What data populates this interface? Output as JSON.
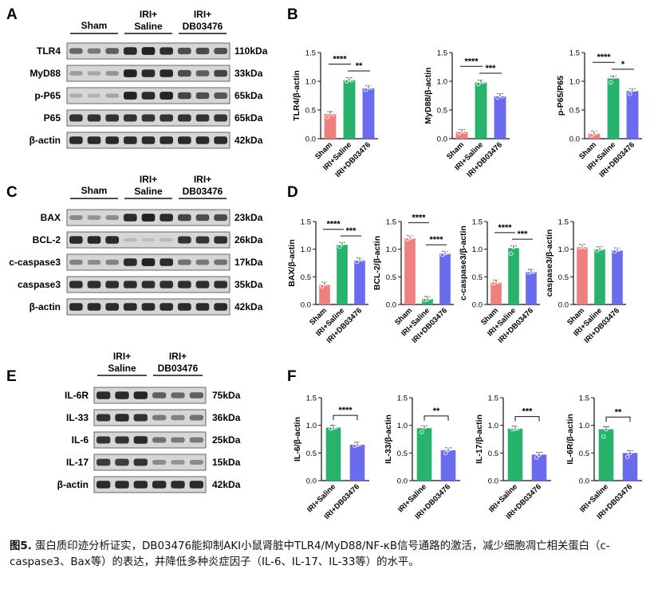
{
  "panels": {
    "A": {
      "letter": "A",
      "groups": [
        "Sham",
        "IRI+\nSaline",
        "IRI+\nDB03476"
      ],
      "rows": [
        {
          "protein": "TLR4",
          "kda": "110kDa",
          "lanes": [
            0.55,
            0.45,
            0.6,
            0.9,
            0.95,
            0.88,
            0.7,
            0.72,
            0.68
          ]
        },
        {
          "protein": "MyD88",
          "kda": "33kDa",
          "lanes": [
            0.25,
            0.2,
            0.3,
            0.95,
            0.9,
            0.92,
            0.7,
            0.6,
            0.75
          ]
        },
        {
          "protein": "p-P65",
          "kda": "65kDa",
          "lanes": [
            0.15,
            0.12,
            0.2,
            0.95,
            0.9,
            0.95,
            0.75,
            0.7,
            0.65
          ]
        },
        {
          "protein": "P65",
          "kda": "65kDa",
          "lanes": [
            0.85,
            0.85,
            0.85,
            0.85,
            0.85,
            0.85,
            0.85,
            0.85,
            0.85
          ]
        },
        {
          "protein": "β-actin",
          "kda": "42kDa",
          "lanes": [
            0.9,
            0.9,
            0.9,
            0.9,
            0.9,
            0.9,
            0.9,
            0.9,
            0.9
          ]
        }
      ]
    },
    "C": {
      "letter": "C",
      "groups": [
        "Sham",
        "IRI+\nSaline",
        "IRI+\nDB03476"
      ],
      "rows": [
        {
          "protein": "BAX",
          "kda": "23kDa",
          "lanes": [
            0.35,
            0.3,
            0.35,
            0.9,
            0.95,
            0.9,
            0.75,
            0.7,
            0.72
          ]
        },
        {
          "protein": "BCL-2",
          "kda": "26kDa",
          "lanes": [
            0.9,
            0.92,
            0.9,
            0.08,
            0.05,
            0.08,
            0.85,
            0.85,
            0.88
          ]
        },
        {
          "protein": "c-caspase3",
          "kda": "17kDa",
          "lanes": [
            0.4,
            0.35,
            0.4,
            0.9,
            0.95,
            0.9,
            0.5,
            0.45,
            0.5
          ]
        },
        {
          "protein": "caspase3",
          "kda": "35kDa",
          "lanes": [
            0.88,
            0.88,
            0.88,
            0.88,
            0.88,
            0.88,
            0.88,
            0.88,
            0.88
          ]
        },
        {
          "protein": "β-actin",
          "kda": "42kDa",
          "lanes": [
            0.9,
            0.9,
            0.9,
            0.9,
            0.9,
            0.9,
            0.9,
            0.9,
            0.9
          ]
        }
      ]
    },
    "E": {
      "letter": "E",
      "groups": [
        "IRI+\nSaline",
        "IRI+\nDB03476"
      ],
      "rows": [
        {
          "protein": "IL-6R",
          "kda": "75kDa",
          "lanes": [
            0.9,
            0.9,
            0.92,
            0.6,
            0.55,
            0.6
          ]
        },
        {
          "protein": "IL-33",
          "kda": "36kDa",
          "lanes": [
            0.85,
            0.9,
            0.85,
            0.45,
            0.4,
            0.5
          ]
        },
        {
          "protein": "IL-6",
          "kda": "25kDa",
          "lanes": [
            0.85,
            0.85,
            0.9,
            0.5,
            0.45,
            0.45
          ]
        },
        {
          "protein": "IL-17",
          "kda": "15kDa",
          "lanes": [
            0.8,
            0.8,
            0.85,
            0.35,
            0.3,
            0.35
          ]
        },
        {
          "protein": "β-actin",
          "kda": "42kDa",
          "lanes": [
            0.9,
            0.9,
            0.9,
            0.9,
            0.9,
            0.9
          ]
        }
      ]
    }
  },
  "chart_data": [
    {
      "panel": "B",
      "letter": "B",
      "type": "bar",
      "ylabel": "TLR4/β-actin",
      "ylim": [
        0,
        1.5
      ],
      "yticks": [
        "0.0",
        "0.5",
        "1.0",
        "1.5"
      ],
      "categories": [
        "Sham",
        "IRI+Saline",
        "IRI+DB03476"
      ],
      "values": [
        0.43,
        1.02,
        0.88
      ],
      "points": [
        [
          0.38,
          0.47,
          0.43
        ],
        [
          1.0,
          1.03,
          1.02
        ],
        [
          0.85,
          0.9,
          0.89
        ]
      ],
      "sig": [
        {
          "from": 0,
          "to": 1,
          "label": "****"
        },
        {
          "from": 1,
          "to": 2,
          "label": "**"
        }
      ]
    },
    {
      "panel": "B",
      "letter": "",
      "type": "bar",
      "ylabel": "MyD88/β-actin",
      "ylim": [
        0,
        1.5
      ],
      "yticks": [
        "0.0",
        "0.5",
        "1.0",
        "1.5"
      ],
      "categories": [
        "Sham",
        "IRI+Saline",
        "IRI+DB03476"
      ],
      "values": [
        0.12,
        0.98,
        0.74
      ],
      "points": [
        [
          0.1,
          0.14,
          0.12
        ],
        [
          0.95,
          1.0,
          0.99
        ],
        [
          0.72,
          0.76,
          0.74
        ]
      ],
      "sig": [
        {
          "from": 0,
          "to": 1,
          "label": "****"
        },
        {
          "from": 1,
          "to": 2,
          "label": "***"
        }
      ]
    },
    {
      "panel": "B",
      "letter": "",
      "type": "bar",
      "ylabel": "p-P65/P65",
      "ylim": [
        0,
        1.5
      ],
      "yticks": [
        "0.0",
        "0.5",
        "1.0",
        "1.5"
      ],
      "categories": [
        "Sham",
        "IRI+Saline",
        "IRI+DB03476"
      ],
      "values": [
        0.09,
        1.05,
        0.83
      ],
      "points": [
        [
          0.06,
          0.1,
          0.11
        ],
        [
          0.98,
          1.08,
          1.1
        ],
        [
          0.78,
          0.85,
          0.86
        ]
      ],
      "sig": [
        {
          "from": 0,
          "to": 1,
          "label": "****"
        },
        {
          "from": 1,
          "to": 2,
          "label": "*"
        }
      ]
    },
    {
      "panel": "D",
      "letter": "D",
      "type": "bar",
      "ylabel": "BAX/β-actin",
      "ylim": [
        0,
        1.5
      ],
      "yticks": [
        "0.0",
        "0.5",
        "1.0",
        "1.5"
      ],
      "categories": [
        "Sham",
        "IRI+Saline",
        "IRI+DB03476"
      ],
      "values": [
        0.36,
        1.08,
        0.8
      ],
      "points": [
        [
          0.33,
          0.38,
          0.37
        ],
        [
          1.05,
          1.1,
          1.12
        ],
        [
          0.77,
          0.82,
          0.81
        ]
      ],
      "sig": [
        {
          "from": 0,
          "to": 1,
          "label": "****"
        },
        {
          "from": 1,
          "to": 2,
          "label": "***"
        }
      ]
    },
    {
      "panel": "D",
      "letter": "",
      "type": "bar",
      "ylabel": "BCL-2/β-actin",
      "ylim": [
        0,
        1.5
      ],
      "yticks": [
        "0.0",
        "0.5",
        "1.0",
        "1.5"
      ],
      "categories": [
        "Sham",
        "IRI+Saline",
        "IRI+DB03476"
      ],
      "values": [
        1.2,
        0.1,
        0.92
      ],
      "points": [
        [
          1.18,
          1.21,
          1.22
        ],
        [
          0.08,
          0.1,
          0.12
        ],
        [
          0.9,
          0.93,
          0.94
        ]
      ],
      "sig": [
        {
          "from": 0,
          "to": 1,
          "label": "****"
        },
        {
          "from": 1,
          "to": 2,
          "label": "****"
        }
      ]
    },
    {
      "panel": "D",
      "letter": "",
      "type": "bar",
      "ylabel": "c-caspase3/β-actin",
      "ylim": [
        0,
        1.5
      ],
      "yticks": [
        "0.0",
        "0.5",
        "1.0",
        "1.5"
      ],
      "categories": [
        "Sham",
        "IRI+Saline",
        "IRI+DB03476"
      ],
      "values": [
        0.4,
        1.02,
        0.59
      ],
      "points": [
        [
          0.38,
          0.42,
          0.41
        ],
        [
          0.92,
          1.04,
          1.07
        ],
        [
          0.58,
          0.59,
          0.6
        ]
      ],
      "sig": [
        {
          "from": 0,
          "to": 1,
          "label": "****"
        },
        {
          "from": 1,
          "to": 2,
          "label": "***"
        }
      ]
    },
    {
      "panel": "D",
      "letter": "",
      "type": "bar",
      "ylabel": "caspase3/β-actin",
      "ylim": [
        0,
        1.5
      ],
      "yticks": [
        "0.0",
        "0.5",
        "1.0",
        "1.5"
      ],
      "categories": [
        "Sham",
        "IRI+Saline",
        "IRI+DB03476"
      ],
      "values": [
        1.04,
        1.0,
        0.98
      ],
      "points": [
        [
          1.03,
          1.05,
          1.04
        ],
        [
          0.98,
          1.01,
          1.02
        ],
        [
          0.96,
          0.99,
          1.0
        ]
      ],
      "sig": []
    },
    {
      "panel": "F",
      "letter": "F",
      "type": "bar",
      "ylabel": "IL-6/β-actin",
      "ylim": [
        0,
        1.5
      ],
      "yticks": [
        "0.0",
        "0.5",
        "1.0",
        "1.5"
      ],
      "categories": [
        "IRI+Saline",
        "IRI+DB03476"
      ],
      "values": [
        0.96,
        0.65
      ],
      "points": [
        [
          0.94,
          0.96,
          0.97
        ],
        [
          0.63,
          0.65,
          0.66
        ]
      ],
      "sig": [
        {
          "from": 0,
          "to": 1,
          "label": "****"
        }
      ]
    },
    {
      "panel": "F",
      "letter": "",
      "type": "bar",
      "ylabel": "IL-33/β-actin",
      "ylim": [
        0,
        1.5
      ],
      "yticks": [
        "0.0",
        "0.5",
        "1.0",
        "1.5"
      ],
      "categories": [
        "IRI+Saline",
        "IRI+DB03476"
      ],
      "values": [
        0.95,
        0.55
      ],
      "points": [
        [
          0.88,
          0.97,
          1.0
        ],
        [
          0.5,
          0.56,
          0.58
        ]
      ],
      "sig": [
        {
          "from": 0,
          "to": 1,
          "label": "**"
        }
      ]
    },
    {
      "panel": "F",
      "letter": "",
      "type": "bar",
      "ylabel": "IL-17/β-actin",
      "ylim": [
        0,
        1.5
      ],
      "yticks": [
        "0.0",
        "0.5",
        "1.0",
        "1.5"
      ],
      "categories": [
        "IRI+Saline",
        "IRI+DB03476"
      ],
      "values": [
        0.94,
        0.47
      ],
      "points": [
        [
          0.93,
          0.94,
          0.95
        ],
        [
          0.42,
          0.47,
          0.52
        ]
      ],
      "sig": [
        {
          "from": 0,
          "to": 1,
          "label": "***"
        }
      ]
    },
    {
      "panel": "F",
      "letter": "",
      "type": "bar",
      "ylabel": "IL-6R/β-actin",
      "ylim": [
        0,
        1.5
      ],
      "yticks": [
        "0.0",
        "0.5",
        "1.0",
        "1.5"
      ],
      "categories": [
        "IRI+Saline",
        "IRI+DB03476"
      ],
      "values": [
        0.93,
        0.5
      ],
      "points": [
        [
          0.8,
          0.93,
          1.02
        ],
        [
          0.43,
          0.5,
          0.56
        ]
      ],
      "sig": [
        {
          "from": 0,
          "to": 1,
          "label": "**"
        }
      ]
    }
  ],
  "colors": {
    "sham": "#f08080",
    "saline": "#27b36b",
    "db": "#6b6bf0"
  },
  "caption": {
    "label": "图5.",
    "text": " 蛋白质印迹分析证实，DB03476能抑制AKI小鼠肾脏中TLR4/MyD88/NF-κB信号通路的激活，减少细胞凋亡相关蛋白（c-caspase3、Bax等）的表达，并降低多种炎症因子（IL-6、IL-17、IL-33等）的水平。"
  }
}
